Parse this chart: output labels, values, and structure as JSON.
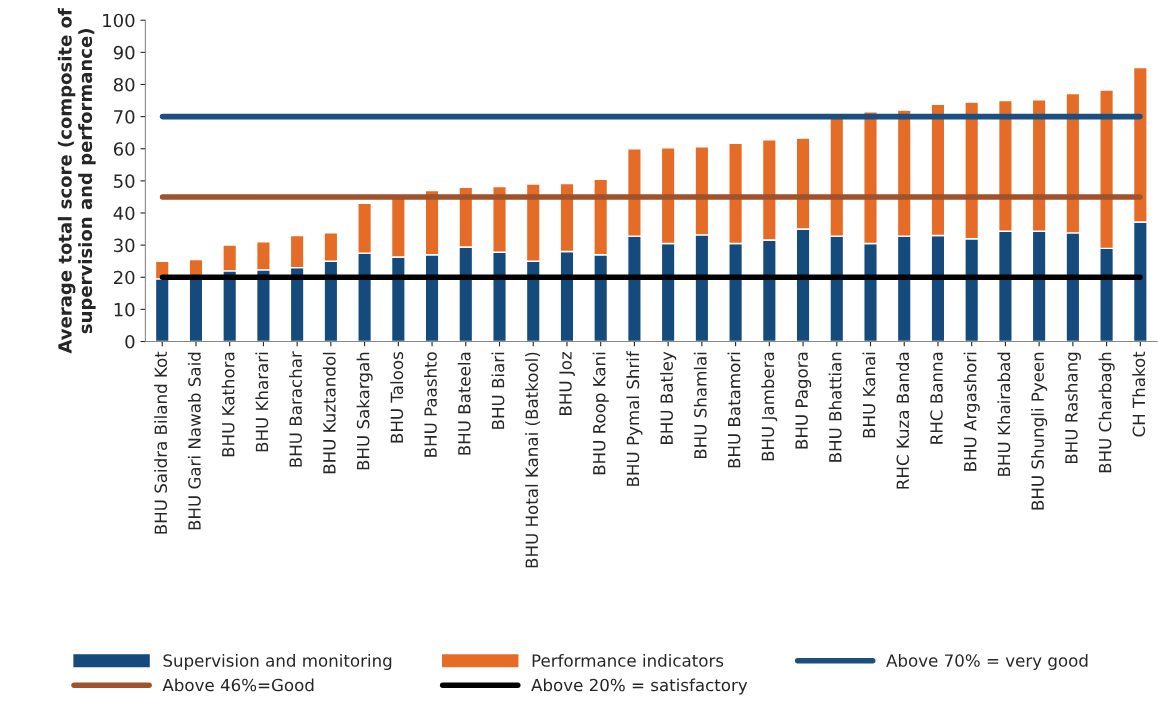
{
  "chart_data": {
    "type": "bar",
    "stacked": true,
    "ylabel": "Average total score (composite of supervision and performance)",
    "categories": [
      "BHU Saidra Biland Kot",
      "BHU Gari Nawab Said",
      "BHU Kathora",
      "BHU Kharari",
      "BHU Barachar",
      "BHU Kuztandol",
      "BHU Sakargah",
      "BHU Taloos",
      "BHU Paashto",
      "BHU Bateela",
      "BHU Biari",
      "BHU Hotal Kanai (Batkool)",
      "BHU Joz",
      "BHU Roop Kani",
      "BHU Pymal Shrif",
      "BHU Batley",
      "BHU Shamlai",
      "BHU Batamori",
      "BHU Jambera",
      "BHU Pagora",
      "BHU Bhattian",
      "BHU Kanai",
      "RHC Kuza Banda",
      "RHC Banna",
      "BHU Argashori",
      "BHU Khairabad",
      "BHU Shungli Pyeen",
      "BHU Rashang",
      "BHU Charbagh",
      "CH Thakot"
    ],
    "series": [
      {
        "name": "Supervision and monitoring",
        "color": "#154a7d",
        "values": [
          19.5,
          20,
          22,
          22.3,
          23,
          25,
          27.5,
          26.3,
          27,
          29.4,
          27.8,
          25,
          28,
          27,
          32.8,
          30.5,
          33.2,
          30.5,
          31.6,
          35,
          32.8,
          30.5,
          32.8,
          33,
          32,
          34.3,
          34.3,
          33.8,
          29,
          37.2
        ]
      },
      {
        "name": "Performance indicators",
        "color": "#e46c26",
        "values": [
          5.5,
          5.5,
          8,
          8.7,
          10,
          8.8,
          15.5,
          18.7,
          20,
          18.6,
          20.4,
          24,
          21.2,
          23.5,
          27.2,
          29.8,
          27.4,
          31.2,
          31.2,
          28.3,
          36.7,
          41,
          39.2,
          40.8,
          42.5,
          40.7,
          40.9,
          43.4,
          49.3,
          48.1
        ]
      }
    ],
    "ref_lines": [
      {
        "axis": "y",
        "value": 70,
        "label": "Above 70% = very good",
        "color": "#1a4f80"
      },
      {
        "axis": "y",
        "value": 45,
        "label": "Above 46%=Good",
        "color": "#a0522d"
      },
      {
        "axis": "y",
        "value": 20,
        "label": "Above 20% = satisfactory",
        "color": "#000000"
      }
    ],
    "ylim": [
      0,
      100
    ],
    "yticks": [
      0,
      10,
      20,
      30,
      40,
      50,
      60,
      70,
      80,
      90,
      100
    ],
    "grid": false,
    "legend": "bottom"
  }
}
